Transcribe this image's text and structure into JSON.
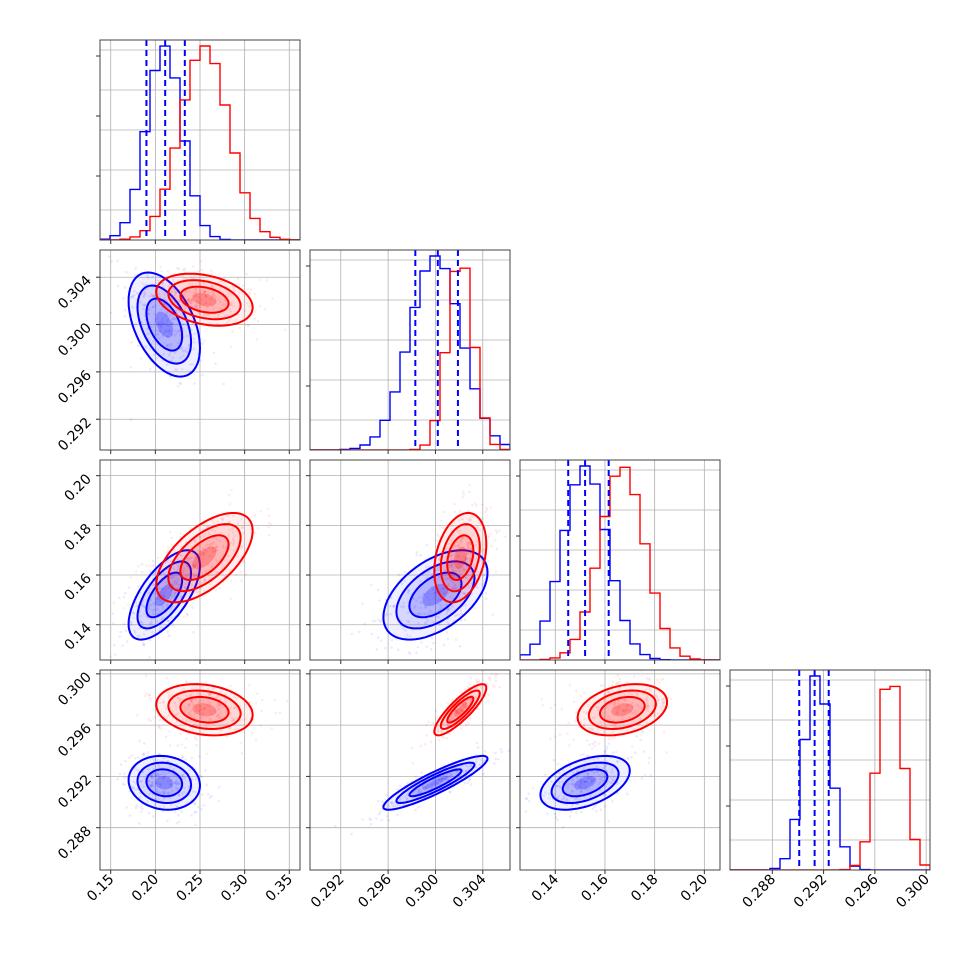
{
  "chart_data": {
    "type": "corner",
    "description_free": true,
    "series_colors": {
      "blue": "#0000ff",
      "red": "#ff0000"
    },
    "grid": true,
    "parameters": [
      {
        "ticks": [
          "0.15",
          "0.20",
          "0.25",
          "0.30",
          "0.35"
        ],
        "tick_values": [
          0.15,
          0.2,
          0.25,
          0.3,
          0.35
        ],
        "range": [
          0.138,
          0.362
        ]
      },
      {
        "ticks": [
          "0.292",
          "0.296",
          "0.300",
          "0.304"
        ],
        "tick_values": [
          0.292,
          0.296,
          0.3,
          0.304
        ],
        "range": [
          0.2894,
          0.3063
        ]
      },
      {
        "ticks": [
          "0.14",
          "0.16",
          "0.18",
          "0.20"
        ],
        "tick_values": [
          0.14,
          0.16,
          0.18,
          0.2
        ],
        "range": [
          0.1258,
          0.2063
        ]
      },
      {
        "ticks": [
          "0.288",
          "0.292",
          "0.296",
          "0.300"
        ],
        "tick_values": [
          0.288,
          0.292,
          0.296,
          0.3
        ],
        "range": [
          0.2847,
          0.3003
        ]
      }
    ],
    "series": [
      {
        "color": "#0000ff",
        "mean": [
          0.21,
          0.3,
          0.152,
          0.2915
        ],
        "sd": [
          0.02,
          0.0022,
          0.009,
          0.00105
        ],
        "corr": [
          [
            1,
            -0.45,
            0.65,
            -0.1
          ],
          [
            -0.45,
            1,
            0.5,
            0.9
          ],
          [
            0.65,
            0.5,
            1,
            0.45
          ],
          [
            -0.1,
            0.9,
            0.45,
            1
          ]
        ],
        "quantile_lines": [
          [
            0.19,
            0.211,
            0.233
          ],
          [
            0.2983,
            0.3002,
            0.3019
          ],
          [
            0.1452,
            0.152,
            0.1615
          ],
          [
            0.2901,
            0.2913,
            0.2924
          ]
        ]
      },
      {
        "color": "#ff0000",
        "mean": [
          0.255,
          0.3021,
          0.167,
          0.2972
        ],
        "sd": [
          0.027,
          0.0011,
          0.009,
          0.001
        ],
        "corr": [
          [
            1,
            -0.3,
            0.6,
            -0.2
          ],
          [
            -0.3,
            1,
            0.3,
            0.85
          ],
          [
            0.6,
            0.3,
            1,
            0.3
          ],
          [
            -0.2,
            0.85,
            0.3,
            1
          ]
        ]
      }
    ]
  }
}
